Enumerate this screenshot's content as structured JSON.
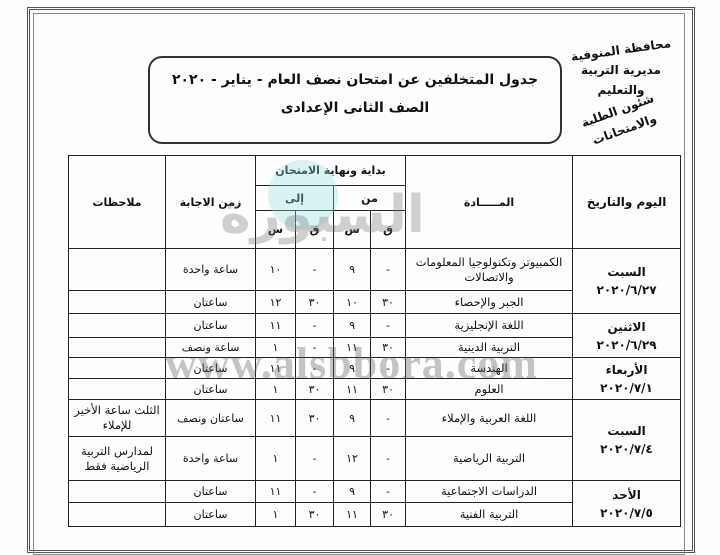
{
  "logo": {
    "line1": "محافظة المنوفية",
    "line2": "مديرية التربية والتعليم",
    "line3": "شئون الطلبة والامتحانات"
  },
  "header": {
    "title": "جدول المتخلفين عن امتحان نصف العام - يناير - ٢٠٢٠",
    "subtitle": "الصف الثانى الإعدادى"
  },
  "watermark": {
    "name": "السبورة",
    "url": "www.alsbbora.com"
  },
  "table": {
    "headers": {
      "day": "اليوم والتاريخ",
      "subject": "المـــــادة",
      "exam_span": "بداية ونهاية الامتحان",
      "from": "من",
      "to": "إلى",
      "minute": "ق",
      "hour": "س",
      "duration": "زمن الاجابة",
      "notes": "ملاحظات"
    },
    "groups": [
      {
        "day": "السبت",
        "date": "٢٠٢٠/٦/٢٧",
        "rows": [
          {
            "subject": "الكمبيوتر وتكنولوجيا المعلومات والاتصالات",
            "from_m": "-",
            "from_h": "٩",
            "to_m": "-",
            "to_h": "١٠",
            "duration": "ساعة واحدة",
            "notes": ""
          },
          {
            "subject": "الجبر والإحصاء",
            "from_m": "٣٠",
            "from_h": "١٠",
            "to_m": "٣٠",
            "to_h": "١٢",
            "duration": "ساعتان",
            "notes": ""
          }
        ]
      },
      {
        "day": "الاثنين",
        "date": "٢٠٢٠/٦/٢٩",
        "rows": [
          {
            "subject": "اللغة الإنجليزية",
            "from_m": "-",
            "from_h": "٩",
            "to_m": "-",
            "to_h": "١١",
            "duration": "ساعتان",
            "notes": ""
          },
          {
            "subject": "التربية الدينية",
            "from_m": "٣٠",
            "from_h": "١١",
            "to_m": "-",
            "to_h": "١",
            "duration": "ساعة ونصف",
            "notes": ""
          }
        ]
      },
      {
        "day": "الأربعاء",
        "date": "٢٠٢٠/٧/١",
        "rows": [
          {
            "subject": "الهندسة",
            "from_m": "-",
            "from_h": "٩",
            "to_m": "-",
            "to_h": "١١",
            "duration": "ساعتان",
            "notes": ""
          },
          {
            "subject": "العلوم",
            "from_m": "٣٠",
            "from_h": "١١",
            "to_m": "٣٠",
            "to_h": "١",
            "duration": "ساعتان",
            "notes": ""
          }
        ]
      },
      {
        "day": "السبت",
        "date": "٢٠٢٠/٧/٤",
        "rows": [
          {
            "subject": "اللغة العربية والإملاء",
            "from_m": "-",
            "from_h": "٩",
            "to_m": "٣٠",
            "to_h": "١١",
            "duration": "ساعتان ونصف",
            "notes": "الثلث ساعة الأخير للإملاء"
          },
          {
            "subject": "التربية الرياضية",
            "from_m": "-",
            "from_h": "١٢",
            "to_m": "-",
            "to_h": "١",
            "duration": "ساعة واحدة",
            "notes": "لمدارس التربية الرياضية فقط"
          }
        ]
      },
      {
        "day": "الأحد",
        "date": "٢٠٢٠/٧/٥",
        "rows": [
          {
            "subject": "الدراسات الاجتماعية",
            "from_m": "-",
            "from_h": "٩",
            "to_m": "-",
            "to_h": "١١",
            "duration": "ساعتان",
            "notes": ""
          },
          {
            "subject": "التربية الفنية",
            "from_m": "٣٠",
            "from_h": "١١",
            "to_m": "٣٠",
            "to_h": "١",
            "duration": "ساعتان",
            "notes": ""
          }
        ]
      }
    ]
  }
}
